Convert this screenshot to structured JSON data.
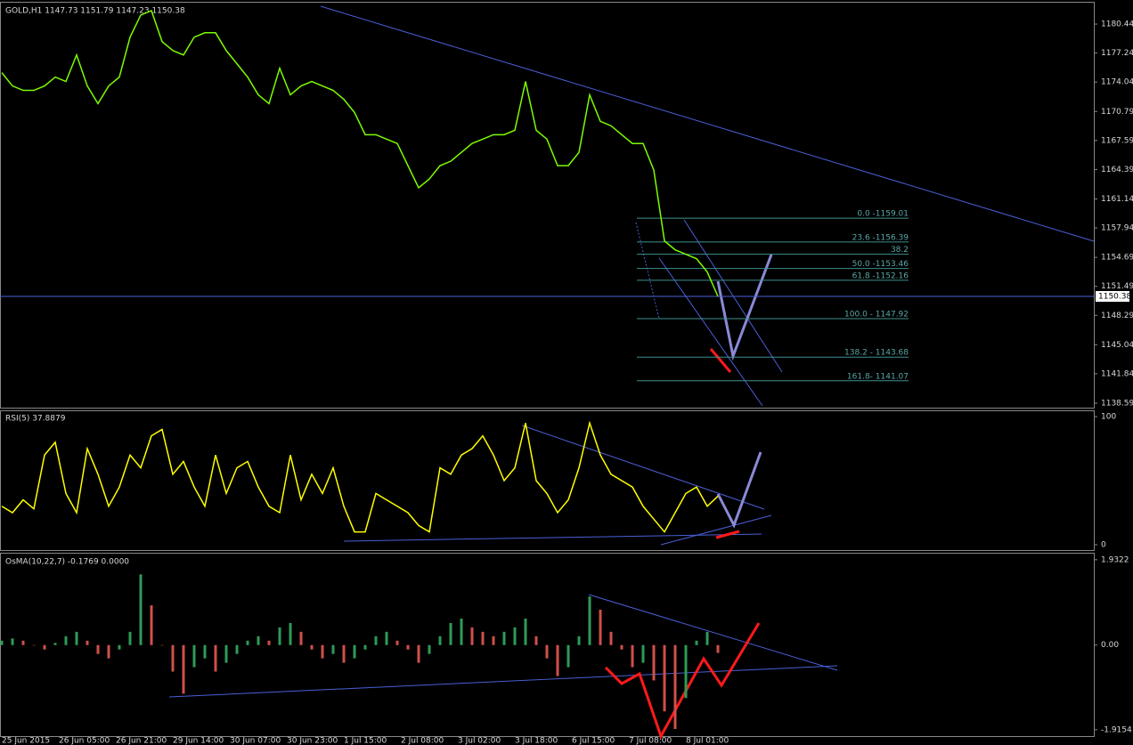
{
  "time_labels": [
    "25 Jun 2015",
    "26 Jun 05:00",
    "26 Jun 21:00",
    "29 Jun 14:00",
    "30 Jun 07:00",
    "30 Jun 23:00",
    "1 Jul 15:00",
    "2 Jul 08:00",
    "3 Jul 02:00",
    "3 Jul 18:00",
    "6 Jul 15:00",
    "7 Jul 08:00",
    "8 Jul 01:00"
  ],
  "chart_data": [
    {
      "type": "line",
      "title": "GOLD,H1  1147.73 1151.79 1147.23 1150.38",
      "color": "#7cfc00",
      "values": [
        1175.08,
        1173.61,
        1173.12,
        1173.12,
        1173.61,
        1174.59,
        1174.1,
        1177.03,
        1173.61,
        1171.66,
        1173.61,
        1174.59,
        1178.99,
        1181.43,
        1181.92,
        1178.5,
        1177.52,
        1177.03,
        1178.99,
        1179.48,
        1179.48,
        1177.52,
        1176.06,
        1174.59,
        1172.63,
        1171.66,
        1175.57,
        1172.63,
        1173.61,
        1174.1,
        1173.61,
        1173.12,
        1172.14,
        1170.68,
        1168.23,
        1168.23,
        1167.74,
        1167.26,
        1164.81,
        1162.37,
        1163.34,
        1164.81,
        1165.3,
        1166.28,
        1167.26,
        1167.74,
        1168.23,
        1168.23,
        1168.72,
        1174.1,
        1168.72,
        1167.74,
        1164.81,
        1164.81,
        1166.28,
        1172.63,
        1169.7,
        1169.21,
        1168.23,
        1167.26,
        1167.26,
        1164.32,
        1156.5,
        1155.52,
        1155.03,
        1154.54,
        1153.08,
        1150.38
      ],
      "ylim": [
        1138.1,
        1182.9
      ],
      "yticks": [
        {
          "value": 1180.44,
          "label": "1180.44"
        },
        1177.24,
        1174.04,
        1170.79,
        1167.59,
        1164.39,
        1161.14,
        1157.94,
        1154.69,
        1151.49,
        1148.29,
        1145.04,
        1141.84,
        1138.59
      ],
      "current_price": 1150.38,
      "fib_levels": [
        {
          "value": 1159.01,
          "label": "0.0 -1159.01"
        },
        {
          "value": 1156.39,
          "label": "23.6 -1156.39"
        },
        {
          "value": 1155.03,
          "label": "38.2"
        },
        {
          "value": 1153.46,
          "label": "50.0 -1153.46"
        },
        {
          "value": 1152.16,
          "label": "61.8 -1152.16"
        },
        {
          "value": 1147.92,
          "label": "100.0 - 1147.92"
        },
        {
          "value": 1143.68,
          "label": "138.2 - 1143.68"
        },
        {
          "value": 1141.07,
          "label": "161.8- 1141.07"
        }
      ]
    },
    {
      "type": "line",
      "title": "RSI(5) 37.8879",
      "color": "#ffff00",
      "values": [
        30,
        25,
        35,
        28,
        70,
        80,
        40,
        25,
        75,
        55,
        30,
        45,
        70,
        60,
        85,
        90,
        55,
        65,
        45,
        30,
        70,
        40,
        60,
        65,
        45,
        30,
        25,
        70,
        35,
        55,
        40,
        60,
        30,
        10,
        10,
        40,
        35,
        30,
        25,
        15,
        10,
        60,
        55,
        70,
        75,
        85,
        70,
        50,
        60,
        95,
        50,
        40,
        25,
        35,
        60,
        95,
        70,
        55,
        50,
        45,
        30,
        20,
        10,
        25,
        40,
        45,
        30,
        37.89
      ],
      "ylim": [
        -4.2,
        104.9
      ],
      "yticks": [
        100,
        0
      ]
    },
    {
      "type": "bar",
      "title": "OsMA(10,22,7) -0.1769 0.0000",
      "color": "#2e9b57",
      "color_down": "#d0504a",
      "values": [
        0.1,
        0.15,
        0.1,
        0,
        -0.1,
        0.05,
        0.2,
        0.3,
        0.1,
        -0.2,
        -0.3,
        -0.1,
        0.3,
        1.6,
        0.9,
        0,
        -0.6,
        -1.1,
        -0.5,
        -0.3,
        -0.6,
        -0.4,
        -0.2,
        0.1,
        0.2,
        0.1,
        0.4,
        0.5,
        0.3,
        -0.1,
        -0.3,
        -0.2,
        -0.4,
        -0.3,
        -0.1,
        0.2,
        0.3,
        0.1,
        -0.1,
        -0.4,
        -0.2,
        0.2,
        0.5,
        0.6,
        0.4,
        0.3,
        0.2,
        0.3,
        0.4,
        0.6,
        0.2,
        -0.3,
        -0.7,
        -0.5,
        0.2,
        1.1,
        0.8,
        0.3,
        -0.1,
        -0.5,
        -0.4,
        -0.8,
        -1.5,
        -1.9,
        -1.2,
        0.1,
        0.3,
        -0.1769
      ],
      "ylim": [
        -2.06,
        2.09
      ],
      "yticks": [
        1.9322,
        {
          "value": 0,
          "label": "0.00"
        },
        -1.9154
      ]
    }
  ]
}
